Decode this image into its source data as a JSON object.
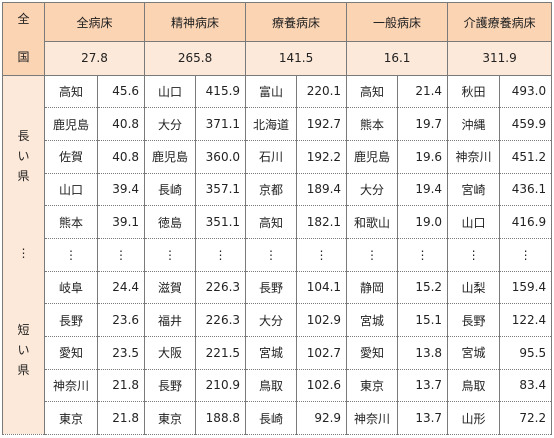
{
  "corner_label": [
    "全",
    "国"
  ],
  "side_labels": {
    "long": [
      "長",
      "い",
      "県"
    ],
    "dots": "⋮",
    "short": [
      "短",
      "い",
      "県"
    ]
  },
  "columns": [
    {
      "header": "全病床",
      "national": "27.8"
    },
    {
      "header": "精神病床",
      "national": "265.8"
    },
    {
      "header": "療養病床",
      "national": "141.5"
    },
    {
      "header": "一般病床",
      "national": "16.1"
    },
    {
      "header": "介護療養病床",
      "national": "311.9"
    }
  ],
  "long_rows": [
    [
      [
        "高知",
        "45.6"
      ],
      [
        "山口",
        "415.9"
      ],
      [
        "富山",
        "220.1"
      ],
      [
        "高知",
        "21.4"
      ],
      [
        "秋田",
        "493.0"
      ]
    ],
    [
      [
        "鹿児島",
        "40.8"
      ],
      [
        "大分",
        "371.1"
      ],
      [
        "北海道",
        "192.7"
      ],
      [
        "熊本",
        "19.7"
      ],
      [
        "沖縄",
        "459.9"
      ]
    ],
    [
      [
        "佐賀",
        "40.8"
      ],
      [
        "鹿児島",
        "360.0"
      ],
      [
        "石川",
        "192.2"
      ],
      [
        "鹿児島",
        "19.6"
      ],
      [
        "神奈川",
        "451.2"
      ]
    ],
    [
      [
        "山口",
        "39.4"
      ],
      [
        "長崎",
        "357.1"
      ],
      [
        "京都",
        "189.4"
      ],
      [
        "大分",
        "19.4"
      ],
      [
        "宮崎",
        "436.1"
      ]
    ],
    [
      [
        "熊本",
        "39.1"
      ],
      [
        "徳島",
        "351.1"
      ],
      [
        "高知",
        "182.1"
      ],
      [
        "和歌山",
        "19.0"
      ],
      [
        "山口",
        "416.9"
      ]
    ]
  ],
  "ellipsis": "⋮",
  "short_rows": [
    [
      [
        "岐阜",
        "24.4"
      ],
      [
        "滋賀",
        "226.3"
      ],
      [
        "長野",
        "104.1"
      ],
      [
        "静岡",
        "15.2"
      ],
      [
        "山梨",
        "159.4"
      ]
    ],
    [
      [
        "長野",
        "23.6"
      ],
      [
        "福井",
        "226.3"
      ],
      [
        "大分",
        "102.9"
      ],
      [
        "宮城",
        "15.1"
      ],
      [
        "長野",
        "122.4"
      ]
    ],
    [
      [
        "愛知",
        "23.5"
      ],
      [
        "大阪",
        "221.5"
      ],
      [
        "宮城",
        "102.7"
      ],
      [
        "愛知",
        "13.8"
      ],
      [
        "宮城",
        "95.5"
      ]
    ],
    [
      [
        "神奈川",
        "21.8"
      ],
      [
        "長野",
        "210.9"
      ],
      [
        "鳥取",
        "102.6"
      ],
      [
        "東京",
        "13.7"
      ],
      [
        "鳥取",
        "83.4"
      ]
    ],
    [
      [
        "東京",
        "21.8"
      ],
      [
        "東京",
        "188.8"
      ],
      [
        "長崎",
        "92.9"
      ],
      [
        "神奈川",
        "13.7"
      ],
      [
        "山形",
        "72.2"
      ]
    ]
  ]
}
